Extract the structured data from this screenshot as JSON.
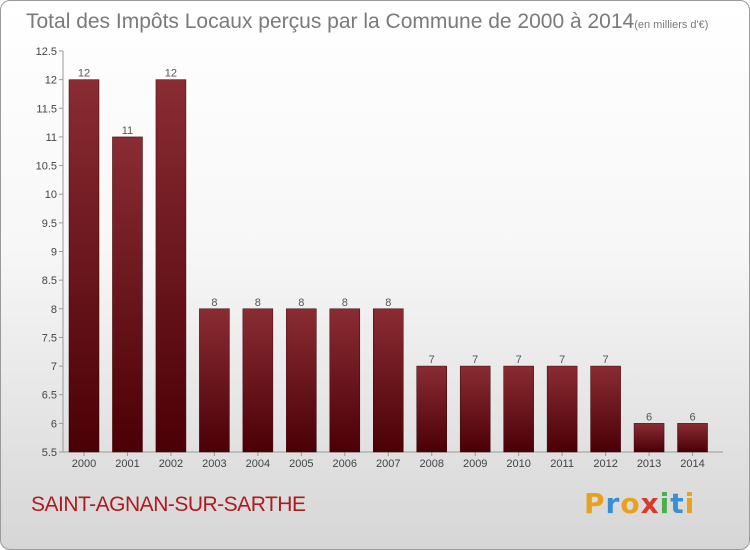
{
  "chart_data": {
    "type": "bar",
    "title": "Total des Impôts Locaux perçus par la Commune de 2000 à 2014",
    "subtitle": "(en milliers d'€)",
    "categories": [
      "2000",
      "2001",
      "2002",
      "2003",
      "2004",
      "2005",
      "2006",
      "2007",
      "2008",
      "2009",
      "2010",
      "2011",
      "2012",
      "2013",
      "2014"
    ],
    "values": [
      12,
      11,
      12,
      8,
      8,
      8,
      8,
      8,
      7,
      7,
      7,
      7,
      7,
      6,
      6
    ],
    "data_labels": [
      "12",
      "11",
      "12",
      "8",
      "8",
      "8",
      "8",
      "8",
      "7",
      "7",
      "7",
      "7",
      "7",
      "6",
      "6"
    ],
    "ylim": [
      5.5,
      12.5
    ],
    "yticks": [
      "5.5",
      "6",
      "6.5",
      "7",
      "7.5",
      "8",
      "8.5",
      "9",
      "9.5",
      "10",
      "10.5",
      "11",
      "11.5",
      "12",
      "12.5"
    ],
    "xlabel": "",
    "ylabel": "",
    "bar_color_top": "#8a2c33",
    "bar_color_bottom": "#4a0006"
  },
  "footer": {
    "commune": "SAINT-AGNAN-SUR-SARTHE",
    "logo_letters": [
      "P",
      "r",
      "o",
      "x",
      "i",
      "t",
      "i"
    ],
    "logo_colors": [
      "#e8a020",
      "#3a8fd4",
      "#e8a020",
      "#d63a2a",
      "#4ab04a",
      "#3a8fd4",
      "#e8a020"
    ]
  }
}
